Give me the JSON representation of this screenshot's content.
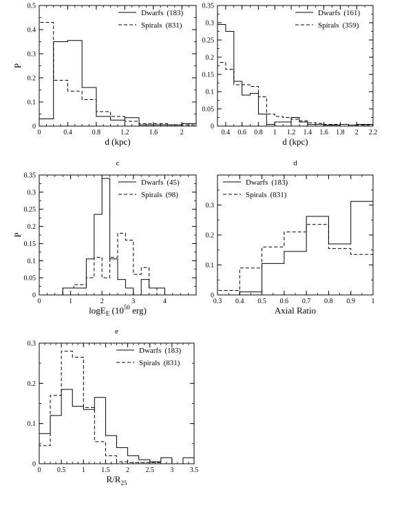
{
  "chart_data": [
    {
      "id": "a",
      "type": "histogram",
      "xlabel": "d (kpc)",
      "ylabel": "P",
      "panel_caption": "",
      "xlim": [
        0,
        2.2
      ],
      "ylim": [
        0,
        0.5
      ],
      "xticks": [
        0,
        0.4,
        0.8,
        1.2,
        1.6,
        2
      ],
      "xtick_labels": [
        "0",
        "0.4",
        "0.8",
        "1.2",
        "1.6",
        "2"
      ],
      "xminor_step": 0.1,
      "yticks": [
        0,
        0.1,
        0.2,
        0.3,
        0.4,
        0.5
      ],
      "ytick_labels": [
        "0",
        "0.1",
        "0.2",
        "0.3",
        "0.4",
        "0.5"
      ],
      "yminor_step": 0.05,
      "legend": {
        "position": "top-right",
        "entries": [
          {
            "label": "Dwarfs",
            "count": "(183)",
            "style": "solid"
          },
          {
            "label": "Spirals",
            "count": "(831)",
            "style": "dashed"
          }
        ]
      },
      "series": [
        {
          "name": "Dwarfs",
          "style": "solid",
          "edges": [
            0,
            0.2,
            0.4,
            0.6,
            0.8,
            1.0,
            1.2,
            1.4,
            1.6,
            1.8,
            2.0,
            2.2
          ],
          "values": [
            0.03,
            0.35,
            0.355,
            0.16,
            0.04,
            0.025,
            0.035,
            0.005,
            0.005,
            0.005,
            0.01
          ]
        },
        {
          "name": "Spirals",
          "style": "dashed",
          "edges": [
            0,
            0.2,
            0.4,
            0.6,
            0.8,
            1.0,
            1.2,
            1.4,
            1.6,
            1.8,
            2.0,
            2.2
          ],
          "values": [
            0.43,
            0.19,
            0.145,
            0.11,
            0.06,
            0.04,
            0.02,
            0.01,
            0.01,
            0.005,
            0.005
          ]
        }
      ]
    },
    {
      "id": "b",
      "type": "histogram",
      "xlabel": "d (kpc)",
      "ylabel": "",
      "panel_caption": "",
      "xlim": [
        0.3,
        2.2
      ],
      "ylim": [
        0,
        0.35
      ],
      "xticks": [
        0.4,
        0.6,
        0.8,
        1,
        1.2,
        1.4,
        1.6,
        1.8,
        2,
        2.2
      ],
      "xtick_labels": [
        "0.4",
        "0.6",
        "0.8",
        "1",
        "1.2",
        "1.4",
        "1.6",
        "1.8",
        "2",
        "2.2"
      ],
      "xminor_step": 0.1,
      "yticks": [
        0,
        0.05,
        0.1,
        0.15,
        0.2,
        0.25,
        0.3,
        0.35
      ],
      "ytick_labels": [
        "0",
        "0.05",
        "0.1",
        "0.15",
        "0.2",
        "0.25",
        "0.3",
        "0.35"
      ],
      "yminor_step": 0.025,
      "legend": {
        "position": "top-right",
        "entries": [
          {
            "label": "Dwarfs",
            "count": "(161)",
            "style": "solid"
          },
          {
            "label": "Spirals",
            "count": "(359)",
            "style": "dashed"
          }
        ]
      },
      "series": [
        {
          "name": "Dwarfs",
          "style": "solid",
          "edges": [
            0.3,
            0.4,
            0.5,
            0.6,
            0.7,
            0.8,
            0.9,
            1.0,
            1.1,
            1.2,
            1.3,
            1.4,
            1.5,
            1.6,
            1.7,
            1.8,
            1.9,
            2.0,
            2.1,
            2.2
          ],
          "values": [
            0.295,
            0.275,
            0.13,
            0.09,
            0.095,
            0.035,
            0.005,
            0.012,
            0.012,
            0.025,
            0.012,
            0.005,
            0.005,
            0.003,
            0.003,
            0.005,
            0.003,
            0.005,
            0.005
          ]
        },
        {
          "name": "Spirals",
          "style": "dashed",
          "edges": [
            0.3,
            0.4,
            0.5,
            0.7,
            0.8,
            0.9,
            1.0,
            1.1,
            1.2,
            1.3,
            1.4,
            1.5,
            1.6,
            1.7,
            1.8,
            1.9,
            2.0,
            2.1,
            2.2
          ],
          "values": [
            0.185,
            0.165,
            0.12,
            0.115,
            0.085,
            0.035,
            0.028,
            0.025,
            0.02,
            0.015,
            0.01,
            0.008,
            0.005,
            0.005,
            0.005,
            0.003,
            0.003,
            0.003
          ]
        }
      ]
    },
    {
      "id": "c",
      "type": "histogram",
      "xlabel": "logE_E (10^50 erg)",
      "xlabel_parts": {
        "base": "logE",
        "sub": "E",
        "mid": " (10",
        "sup": "50",
        "tail": " erg)"
      },
      "ylabel": "P",
      "panel_caption": "c",
      "xlim": [
        0,
        5
      ],
      "ylim": [
        0,
        0.35
      ],
      "xticks": [
        0,
        1,
        2,
        3,
        4
      ],
      "xtick_labels": [
        "0",
        "1",
        "2",
        "3",
        "4"
      ],
      "xminor_step": 0.25,
      "yticks": [
        0,
        0.05,
        0.1,
        0.15,
        0.2,
        0.25,
        0.3,
        0.35
      ],
      "ytick_labels": [
        "0",
        "0.05",
        "0.1",
        "0.15",
        "0.2",
        "0.25",
        "0.3",
        "0.35"
      ],
      "yminor_step": 0.025,
      "legend": {
        "position": "top-right",
        "entries": [
          {
            "label": "Dwarfs",
            "count": "(45)",
            "style": "solid"
          },
          {
            "label": "Spirals",
            "count": "(98)",
            "style": "dashed"
          }
        ]
      },
      "series": [
        {
          "name": "Dwarfs",
          "style": "solid",
          "edges": [
            0.75,
            1.1,
            1.5,
            1.75,
            2.0,
            2.25,
            2.5,
            2.75,
            3.0,
            3.25,
            3.5,
            3.75,
            4.0
          ],
          "values": [
            0.02,
            0.02,
            0.105,
            0.235,
            0.34,
            0.105,
            0.045,
            0.02,
            0.0,
            0.045,
            0.02,
            0.02
          ]
        },
        {
          "name": "Spirals",
          "style": "dashed",
          "edges": [
            0.75,
            1.1,
            1.5,
            1.75,
            2.0,
            2.25,
            2.5,
            2.75,
            3.0,
            3.25,
            3.5,
            3.75,
            4.0
          ],
          "values": [
            0.02,
            0.03,
            0.05,
            0.11,
            0.05,
            0.11,
            0.18,
            0.16,
            0.06,
            0.08,
            0.02,
            0.0
          ]
        }
      ]
    },
    {
      "id": "d",
      "type": "histogram",
      "xlabel": "Axial Ratio",
      "ylabel": "",
      "panel_caption": "d",
      "xlim": [
        0.3,
        1.0
      ],
      "ylim": [
        0,
        0.4
      ],
      "xticks": [
        0.3,
        0.4,
        0.5,
        0.6,
        0.7,
        0.8,
        0.9,
        1
      ],
      "xtick_labels": [
        "0.3",
        "0.4",
        "0.5",
        "0.6",
        "0.7",
        "0.8",
        "0.9",
        "1"
      ],
      "xminor_step": 0.05,
      "yticks": [
        0,
        0.1,
        0.2,
        0.3
      ],
      "ytick_labels": [
        "0",
        "0.1",
        "0.2",
        "0.3"
      ],
      "yminor_step": 0.05,
      "legend": {
        "position": "top-left",
        "entries": [
          {
            "label": "Dwarfs",
            "count": "(183)",
            "style": "solid"
          },
          {
            "label": "Spirals",
            "count": "(831)",
            "style": "dashed"
          }
        ]
      },
      "series": [
        {
          "name": "Dwarfs",
          "style": "solid",
          "edges": [
            0.4,
            0.5,
            0.6,
            0.7,
            0.8,
            0.9,
            1.0
          ],
          "values": [
            0.01,
            0.105,
            0.145,
            0.262,
            0.17,
            0.312
          ]
        },
        {
          "name": "Spirals",
          "style": "dashed",
          "edges": [
            0.3,
            0.4,
            0.5,
            0.6,
            0.7,
            0.8,
            0.9,
            1.0
          ],
          "values": [
            0.015,
            0.09,
            0.16,
            0.21,
            0.235,
            0.155,
            0.135
          ]
        }
      ]
    },
    {
      "id": "e",
      "type": "histogram",
      "xlabel": "R/R_25",
      "xlabel_parts": {
        "base": "R/R",
        "sub": "25"
      },
      "ylabel": "",
      "panel_caption": "e",
      "xlim": [
        0,
        3.5
      ],
      "ylim": [
        0,
        0.3
      ],
      "xticks": [
        0,
        0.5,
        1,
        1.5,
        2,
        2.5,
        3,
        3.5
      ],
      "xtick_labels": [
        "0",
        "0.5",
        "1",
        "1.5",
        "2",
        "2.5",
        "3",
        "3.5"
      ],
      "xminor_step": 0.125,
      "yticks": [
        0,
        0.1,
        0.2,
        0.3
      ],
      "ytick_labels": [
        "0",
        "0.1",
        "0.2",
        "0.3"
      ],
      "yminor_step": 0.05,
      "legend": {
        "position": "top-right",
        "entries": [
          {
            "label": "Dwarfs",
            "count": "(183)",
            "style": "solid"
          },
          {
            "label": "Spirals",
            "count": "(831)",
            "style": "dashed"
          }
        ]
      },
      "series": [
        {
          "name": "Dwarfs",
          "style": "solid",
          "edges": [
            0,
            0.25,
            0.5,
            0.75,
            1.0,
            1.25,
            1.5,
            1.75,
            2.0,
            2.25,
            2.5,
            2.75,
            3.0,
            3.25,
            3.5
          ],
          "values": [
            0.075,
            0.12,
            0.185,
            0.143,
            0.135,
            0.165,
            0.07,
            0.04,
            0.02,
            0.01,
            0.005,
            0.015,
            0.0,
            0.015
          ]
        },
        {
          "name": "Spirals",
          "style": "dashed",
          "edges": [
            0,
            0.25,
            0.5,
            0.75,
            1.0,
            1.25,
            1.5,
            1.75,
            2.0,
            2.25,
            2.5,
            2.75
          ],
          "values": [
            0.045,
            0.17,
            0.28,
            0.265,
            0.14,
            0.055,
            0.02,
            0.005,
            0.003,
            0.003,
            0.003
          ]
        }
      ]
    }
  ]
}
